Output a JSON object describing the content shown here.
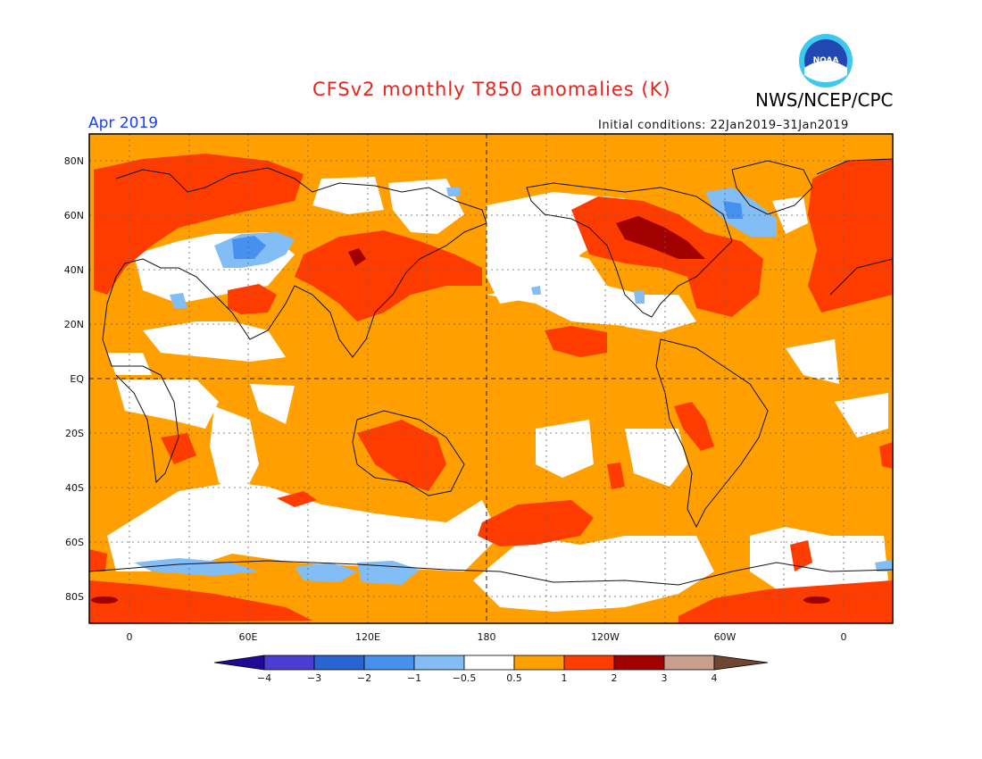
{
  "header": {
    "title": "CFSv2 monthly T850 anomalies (K)",
    "agency": "NWS/NCEP/CPC",
    "logo_text": "NOAA",
    "valid_month": "Apr 2019",
    "initial_conditions": "Initial conditions: 22Jan2019–31Jan2019"
  },
  "axes": {
    "lat_labels": [
      "80N",
      "60N",
      "40N",
      "20N",
      "EQ",
      "20S",
      "40S",
      "60S",
      "80S"
    ],
    "lon_labels": [
      "0",
      "60E",
      "120E",
      "180",
      "120W",
      "60W",
      "0"
    ]
  },
  "legend": {
    "labels": [
      "−4",
      "−3",
      "−2",
      "−1",
      "−0.5",
      "0.5",
      "1",
      "2",
      "3",
      "4"
    ],
    "colors": [
      "#1e0a96",
      "#4b3cd2",
      "#2864d2",
      "#4690f0",
      "#82bef5",
      "#ffffff",
      "#ffa000",
      "#ff3c00",
      "#a00000",
      "#c8a08c",
      "#6e4632"
    ]
  },
  "colors": {
    "orange": "#ffa000",
    "red": "#ff3c00",
    "darkred": "#a00000",
    "lightblue": "#82bef5",
    "blue": "#4690f0",
    "title_red": "#e8231e",
    "month_blue": "#1a3fff"
  }
}
